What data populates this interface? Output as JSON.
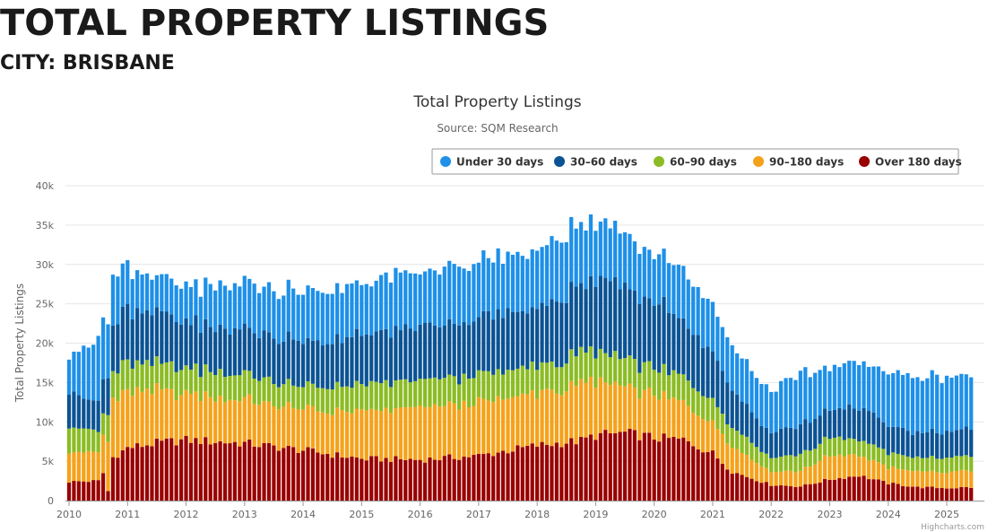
{
  "page": {
    "heading": "TOTAL PROPERTY LISTINGS",
    "subheading": "CITY: BRISBANE"
  },
  "chart_data": {
    "type": "bar",
    "stacked": true,
    "title": "Total Property Listings",
    "subtitle": "Source: SQM Research",
    "ylabel": "Total Property Listings",
    "xlabel": "",
    "ylim": [
      0,
      40000
    ],
    "yticks": [
      0,
      5000,
      10000,
      15000,
      20000,
      25000,
      30000,
      35000,
      40000
    ],
    "ytick_labels": [
      "0",
      "5k",
      "10k",
      "15k",
      "20k",
      "25k",
      "30k",
      "35k",
      "40k"
    ],
    "xtick_labels": [
      "2010",
      "2011",
      "2012",
      "2013",
      "2014",
      "2015",
      "2016",
      "2017",
      "2018",
      "2019",
      "2020",
      "2021",
      "2022",
      "2023",
      "2024",
      "2025"
    ],
    "period": {
      "start_year": 2010,
      "start_month": 1,
      "frequency": "monthly"
    },
    "grid": true,
    "legend_position": "top-right",
    "credits": "Highcharts.com",
    "keyframes": {
      "t": [
        0,
        6,
        9,
        12,
        18,
        24,
        36,
        48,
        60,
        72,
        84,
        96,
        105,
        108,
        114,
        120,
        126,
        132,
        136,
        144,
        150,
        156,
        162,
        168,
        174,
        180,
        186
      ],
      "over_180": [
        2400,
        2500,
        5500,
        6700,
        7300,
        7700,
        7300,
        6400,
        5300,
        5200,
        5700,
        7000,
        7600,
        8300,
        8600,
        8000,
        7700,
        6000,
        3700,
        2000,
        1800,
        2700,
        3200,
        2200,
        1700,
        1600,
        1700
      ],
      "d90_180": [
        4000,
        3500,
        7500,
        7000,
        6600,
        5900,
        5500,
        5100,
        5900,
        6600,
        6700,
        6600,
        6900,
        6800,
        5900,
        5400,
        4700,
        4100,
        3300,
        1700,
        2000,
        3000,
        2600,
        2000,
        2000,
        2000,
        2100
      ],
      "d60_90": [
        3300,
        2500,
        3600,
        3700,
        3600,
        3300,
        3200,
        2900,
        3300,
        3400,
        3500,
        3400,
        3900,
        3800,
        3600,
        3400,
        3200,
        2700,
        2400,
        1700,
        2000,
        2300,
        2000,
        1900,
        1700,
        1900,
        1900
      ],
      "d30_60": [
        4500,
        3700,
        5800,
        6900,
        6400,
        5700,
        5700,
        5700,
        6200,
        6800,
        7200,
        7500,
        8500,
        9000,
        9000,
        8300,
        7300,
        6200,
        4600,
        3200,
        3700,
        3600,
        4200,
        3400,
        3100,
        3300,
        3400
      ],
      "under_30": [
        4800,
        8000,
        6000,
        5200,
        4400,
        4500,
        5800,
        6300,
        6700,
        6900,
        7200,
        7400,
        7800,
        7500,
        6800,
        6300,
        6400,
        6200,
        5500,
        5400,
        6300,
        5400,
        5700,
        6800,
        7000,
        7100,
        6700
      ]
    },
    "series": [
      {
        "name": "Under 30 days",
        "key": "under_30",
        "color": "#1e90e8"
      },
      {
        "name": "30–60 days",
        "key": "d30_60",
        "color": "#0b5394"
      },
      {
        "name": "60–90 days",
        "key": "d60_90",
        "color": "#8bbc25"
      },
      {
        "name": "90–180 days",
        "key": "d90_180",
        "color": "#f5a21b"
      },
      {
        "name": "Over 180 days",
        "key": "over_180",
        "color": "#990000"
      }
    ],
    "style": {
      "grid_color": "#e6e6e6",
      "axis_color": "#999999",
      "text_color": "#333333",
      "tick_color": "#666666"
    }
  }
}
